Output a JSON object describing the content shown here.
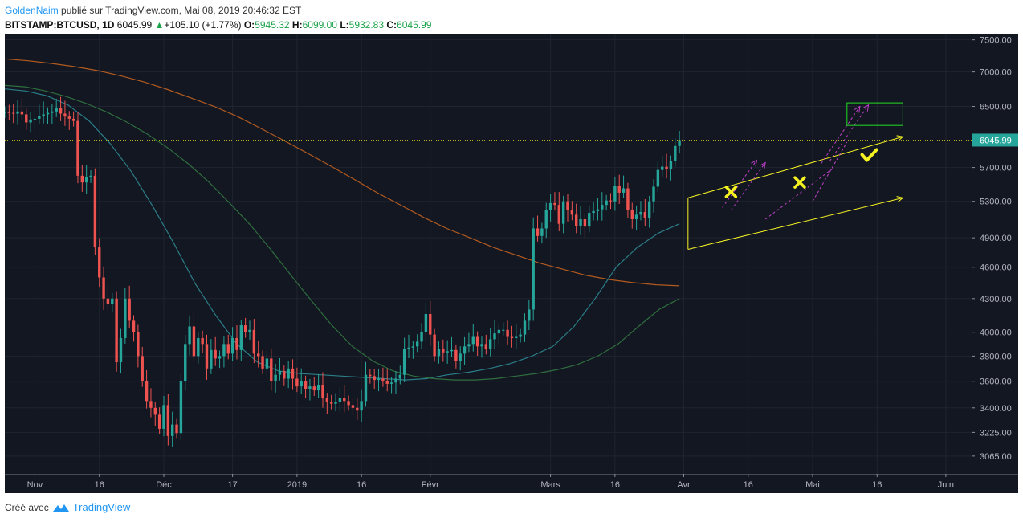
{
  "header": {
    "author": "GoldenNaim",
    "published": " publié sur TradingView.com, Mai 08, 2019 20:46:32 EST",
    "symbol": "BITSTAMP:BTCUSD, 1D",
    "last": "6045.99",
    "change": "+105.10 (+1.77%)",
    "o_label": "O:",
    "o_value": "5945.32",
    "h_label": "H:",
    "h_value": "6099.00",
    "l_label": "L:",
    "l_value": "5932.83",
    "c_label": "C:",
    "c_value": "6045.99"
  },
  "footer": {
    "created_with": "Créé avec",
    "brand": "TradingView"
  },
  "colors": {
    "background": "#131722",
    "up": "#26a69a",
    "down": "#ef5350",
    "ma_orange": "#b35a1f",
    "ma_teal": "#2a7d87",
    "ma_green": "#2f6e3e",
    "annotation_yellow": "#f5f222",
    "annotation_magenta": "#c040c8",
    "target_box": "#22dd22"
  },
  "chart_data": {
    "type": "candlestick",
    "symbol": "BITSTAMP:BTCUSD",
    "interval": "1D",
    "y_axis": {
      "scale": "log",
      "range": [
        2950,
        7600
      ],
      "ticks": [
        "7500.00",
        "7000.00",
        "6500.00",
        "5700.00",
        "5300.00",
        "4900.00",
        "4600.00",
        "4300.00",
        "4000.00",
        "3800.00",
        "3600.00",
        "3400.00",
        "3225.00",
        "3065.00"
      ]
    },
    "x_axis": {
      "range": [
        "2018-10-25",
        "2019-06-07"
      ],
      "ticks": [
        {
          "date": "2018-11-01",
          "label": "Nov"
        },
        {
          "date": "2018-11-16",
          "label": "16"
        },
        {
          "date": "2018-12-01",
          "label": "Déc"
        },
        {
          "date": "2018-12-17",
          "label": "17"
        },
        {
          "date": "2019-01-01",
          "label": "2019"
        },
        {
          "date": "2019-01-16",
          "label": "16"
        },
        {
          "date": "2019-02-01",
          "label": "Févr"
        },
        {
          "date": "2019-03-01",
          "label": "Mars"
        },
        {
          "date": "2019-03-16",
          "label": "16"
        },
        {
          "date": "2019-04-01",
          "label": "Avr"
        },
        {
          "date": "2019-04-16",
          "label": "16"
        },
        {
          "date": "2019-05-01",
          "label": "Mai"
        },
        {
          "date": "2019-05-16",
          "label": "16"
        },
        {
          "date": "2019-06-01",
          "label": "Juin"
        }
      ]
    },
    "last_price": {
      "value": 6045.99,
      "label": "6045.99"
    },
    "start_date": "2018-10-25",
    "closes": [
      6420,
      6410,
      6400,
      6430,
      6390,
      6280,
      6320,
      6330,
      6370,
      6390,
      6410,
      6430,
      6480,
      6400,
      6360,
      6330,
      6300,
      5600,
      5520,
      5580,
      5600,
      4800,
      4500,
      4300,
      4250,
      4300,
      3750,
      3950,
      4300,
      4100,
      4000,
      3800,
      3600,
      3450,
      3400,
      3350,
      3250,
      3420,
      3200,
      3280,
      3220,
      3600,
      3900,
      4050,
      3800,
      3950,
      3900,
      3700,
      3850,
      3780,
      3800,
      3900,
      3820,
      3950,
      3850,
      4060,
      4000,
      4020,
      3820,
      3800,
      3700,
      3780,
      3600,
      3650,
      3680,
      3620,
      3700,
      3620,
      3560,
      3600,
      3540,
      3560,
      3530,
      3570,
      3470,
      3440,
      3430,
      3440,
      3470,
      3450,
      3420,
      3400,
      3380,
      3450,
      3650,
      3640,
      3610,
      3620,
      3600,
      3580,
      3590,
      3620,
      3650,
      3860,
      3870,
      3880,
      3920,
      4000,
      4160,
      3980,
      3800,
      3860,
      3830,
      3840,
      3850,
      3760,
      3820,
      3880,
      3900,
      3960,
      3880,
      3900,
      3860,
      3940,
      3990,
      4020,
      4020,
      3960,
      3950,
      3960,
      3980,
      4100,
      4200,
      5000,
      4920,
      5000,
      5200,
      5280,
      5260,
      5050,
      5300,
      5200,
      5150,
      5030,
      5100,
      5020,
      5170,
      5190,
      5210,
      5260,
      5310,
      5300,
      5480,
      5400,
      5450,
      5200,
      5100,
      5150,
      5180,
      5110,
      5300,
      5470,
      5670,
      5710,
      5680,
      5780,
      5970,
      6046
    ],
    "moving_averages": [
      {
        "color_name": "orange",
        "values": [
          7200,
          7170,
          7130,
          7080,
          7020,
          6940,
          6850,
          6740,
          6620,
          6500,
          6360,
          6200,
          6040,
          5880,
          5720,
          5560,
          5400,
          5260,
          5120,
          5000,
          4900,
          4800,
          4720,
          4640,
          4580,
          4520,
          4480,
          4450,
          4430,
          4420
        ]
      },
      {
        "color_name": "teal",
        "values": [
          6750,
          6720,
          6650,
          6520,
          6300,
          6000,
          5650,
          5250,
          4850,
          4450,
          4150,
          3900,
          3750,
          3680,
          3660,
          3650,
          3640,
          3630,
          3620,
          3610,
          3620,
          3650,
          3670,
          3700,
          3740,
          3800,
          3880,
          4050,
          4300,
          4600,
          4800,
          4950,
          5050
        ]
      },
      {
        "color_name": "green",
        "values": [
          6800,
          6780,
          6720,
          6640,
          6540,
          6420,
          6280,
          6120,
          5940,
          5740,
          5520,
          5280,
          5040,
          4780,
          4520,
          4280,
          4060,
          3880,
          3760,
          3680,
          3640,
          3620,
          3610,
          3610,
          3620,
          3640,
          3660,
          3690,
          3730,
          3800,
          3900,
          4050,
          4200,
          4300
        ]
      }
    ]
  }
}
